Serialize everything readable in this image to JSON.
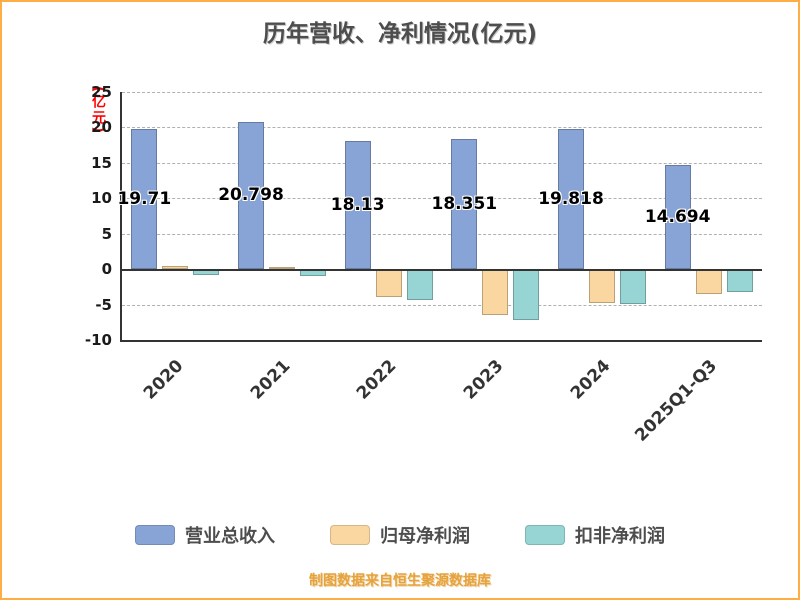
{
  "footer": "制图数据来自恒生聚源数据库",
  "chart_data": {
    "type": "bar",
    "title": "历年营收、净利情况(亿元)",
    "ylabel": "(亿元)",
    "ylabel_color": "#ff0000",
    "categories": [
      "2020",
      "2021",
      "2022",
      "2023",
      "2024",
      "2025Q1-Q3"
    ],
    "series": [
      {
        "name": "营业总收入",
        "color": "#88A4D6",
        "values": [
          19.71,
          20.798,
          18.13,
          18.351,
          19.818,
          14.694
        ]
      },
      {
        "name": "归母净利润",
        "color": "#FAD7A0",
        "values": [
          0.5,
          0.35,
          -3.9,
          -6.5,
          -4.8,
          -3.5
        ]
      },
      {
        "name": "扣非净利润",
        "color": "#96D5D3",
        "values": [
          -0.8,
          -1.0,
          -4.4,
          -7.2,
          -4.9,
          -3.2
        ]
      }
    ],
    "value_labels": [
      "19.71",
      "20.798",
      "18.13",
      "18.351",
      "19.818",
      "14.694"
    ],
    "ylim": [
      -10,
      25
    ],
    "yticks": [
      25,
      20,
      15,
      10,
      5,
      0,
      -5,
      -10
    ],
    "grid": "dashed-horizontal",
    "legend_position": "bottom",
    "accent_border_color": "#FFAE45"
  }
}
